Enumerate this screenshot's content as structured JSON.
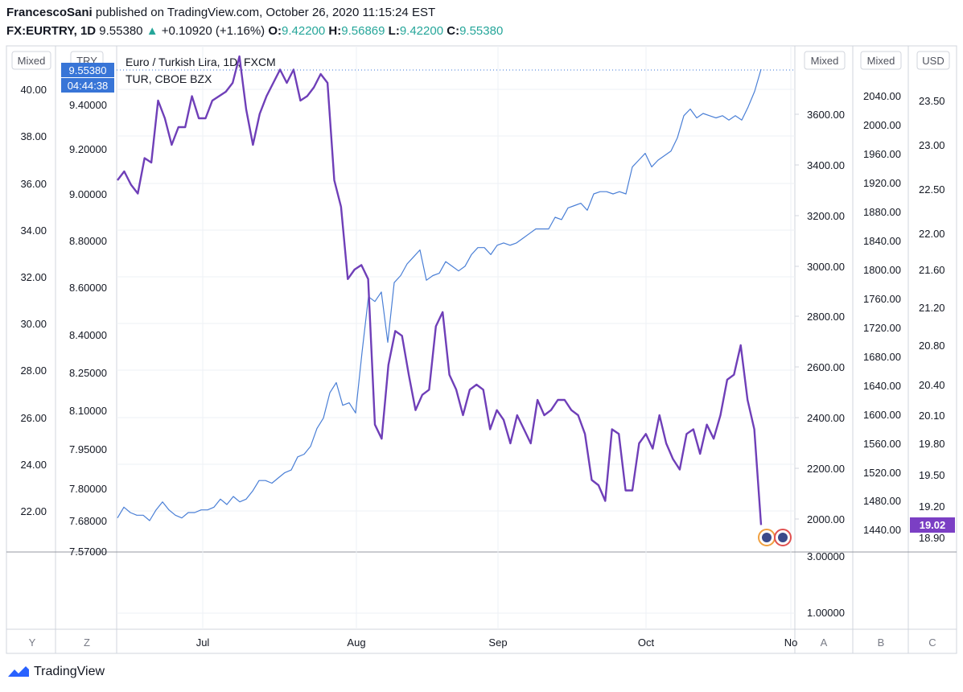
{
  "header": {
    "author": "FrancescoSani",
    "published": "published on TradingView.com, October 26, 2020 11:15:24 EST",
    "symbol": "FX:EURTRY, 1D",
    "last": "9.55380",
    "change": "+0.10920 (+1.16%)",
    "o_label": "O:",
    "o": "9.42200",
    "h_label": "H:",
    "h": "9.56869",
    "l_label": "L:",
    "l": "9.42200",
    "c_label": "C:",
    "c": "9.55380"
  },
  "legend": {
    "line1": "Euro / Turkish Lira, 1D, FXCM",
    "line2": "TUR, CBOE BZX"
  },
  "scale_buttons": {
    "left_mixed": "Mixed",
    "try": "TRY",
    "mixed2": "Mixed",
    "mixed3": "Mixed",
    "usd": "USD"
  },
  "badges": {
    "price": "9.55380",
    "countdown": "04:44:38",
    "tur": "19.02"
  },
  "corner_labels": {
    "y": "Y",
    "z": "Z",
    "a": "A",
    "b": "B",
    "c": "C"
  },
  "footer": {
    "brand": "TradingView"
  },
  "colors": {
    "eurtry": "#4a7fd6",
    "tur": "#6f3fb8",
    "badge_blue": "#3875d7",
    "badge_purple": "#7b3fc4",
    "up": "#26a69a"
  },
  "chart_data": {
    "type": "line",
    "x_ticks": [
      "Jul",
      "Aug",
      "Sep",
      "Oct",
      "No"
    ],
    "series": [
      {
        "name": "Euro / Turkish Lira, 1D, FXCM",
        "axis": "left-inner",
        "values": [
          7.69,
          7.73,
          7.71,
          7.7,
          7.7,
          7.68,
          7.72,
          7.75,
          7.72,
          7.7,
          7.69,
          7.71,
          7.71,
          7.72,
          7.72,
          7.73,
          7.76,
          7.74,
          7.77,
          7.75,
          7.76,
          7.79,
          7.83,
          7.83,
          7.82,
          7.84,
          7.86,
          7.87,
          7.92,
          7.93,
          7.96,
          8.03,
          8.07,
          8.17,
          8.21,
          8.12,
          8.13,
          8.09,
          8.33,
          8.56,
          8.54,
          8.58,
          8.37,
          8.62,
          8.65,
          8.7,
          8.73,
          8.76,
          8.63,
          8.65,
          8.66,
          8.71,
          8.69,
          8.67,
          8.69,
          8.74,
          8.77,
          8.77,
          8.74,
          8.78,
          8.79,
          8.78,
          8.79,
          8.81,
          8.83,
          8.85,
          8.85,
          8.85,
          8.9,
          8.89,
          8.94,
          8.95,
          8.96,
          8.93,
          9.0,
          9.01,
          9.01,
          9.0,
          9.01,
          9.0,
          9.12,
          9.15,
          9.18,
          9.12,
          9.15,
          9.17,
          9.19,
          9.25,
          9.35,
          9.38,
          9.34,
          9.36,
          9.35,
          9.34,
          9.35,
          9.33,
          9.35,
          9.33,
          9.39,
          9.46,
          9.56
        ]
      },
      {
        "name": "TUR, CBOE BZX",
        "axis": "right-usd",
        "values": [
          22.6,
          22.7,
          22.55,
          22.45,
          22.85,
          22.8,
          23.5,
          23.3,
          23.0,
          23.2,
          23.2,
          23.55,
          23.3,
          23.3,
          23.5,
          23.55,
          23.6,
          23.7,
          24.0,
          23.4,
          23.0,
          23.35,
          23.55,
          23.7,
          23.85,
          23.7,
          23.85,
          23.5,
          23.55,
          23.65,
          23.8,
          23.7,
          22.6,
          22.3,
          21.5,
          21.6,
          21.65,
          21.5,
          20.0,
          19.85,
          20.6,
          20.95,
          20.9,
          20.5,
          20.15,
          20.3,
          20.35,
          21.0,
          21.15,
          20.5,
          20.35,
          20.1,
          20.35,
          20.4,
          20.35,
          19.95,
          20.15,
          20.05,
          19.8,
          20.1,
          19.95,
          19.8,
          20.25,
          20.1,
          20.15,
          20.25,
          20.25,
          20.15,
          20.1,
          19.9,
          19.45,
          19.4,
          19.25,
          19.95,
          19.9,
          19.35,
          19.35,
          19.8,
          19.9,
          19.75,
          20.1,
          19.8,
          19.65,
          19.55,
          19.9,
          19.95,
          19.7,
          20.0,
          19.85,
          20.1,
          20.45,
          20.5,
          20.8,
          20.25,
          19.95,
          19.02
        ]
      }
    ],
    "axes": {
      "left_outer": {
        "ticks": [
          "40.00",
          "38.00",
          "36.00",
          "34.00",
          "32.00",
          "30.00",
          "28.00",
          "26.00",
          "24.00",
          "22.00"
        ]
      },
      "left_inner": {
        "ticks": [
          "9.40000",
          "9.20000",
          "9.00000",
          "8.80000",
          "8.60000",
          "8.40000",
          "8.25000",
          "8.10000",
          "7.95000",
          "7.80000",
          "7.68000",
          "7.57000"
        ]
      },
      "right_a": {
        "ticks": [
          "3600.00",
          "3400.00",
          "3200.00",
          "3000.00",
          "2800.00",
          "2600.00",
          "2400.00",
          "2200.00",
          "2000.00"
        ]
      },
      "right_b": {
        "ticks": [
          "2040.00",
          "2000.00",
          "1960.00",
          "1920.00",
          "1880.00",
          "1840.00",
          "1800.00",
          "1760.00",
          "1720.00",
          "1680.00",
          "1640.00",
          "1600.00",
          "1560.00",
          "1520.00",
          "1480.00",
          "1440.00"
        ]
      },
      "right_usd": {
        "ticks": [
          "23.50",
          "23.00",
          "22.50",
          "22.00",
          "21.60",
          "21.20",
          "20.80",
          "20.40",
          "20.10",
          "19.80",
          "19.50",
          "19.20",
          "18.90"
        ],
        "ylim": [
          18.8,
          23.9
        ]
      },
      "lower_pane": {
        "ticks": [
          "3.00000",
          "1.00000"
        ]
      }
    }
  }
}
